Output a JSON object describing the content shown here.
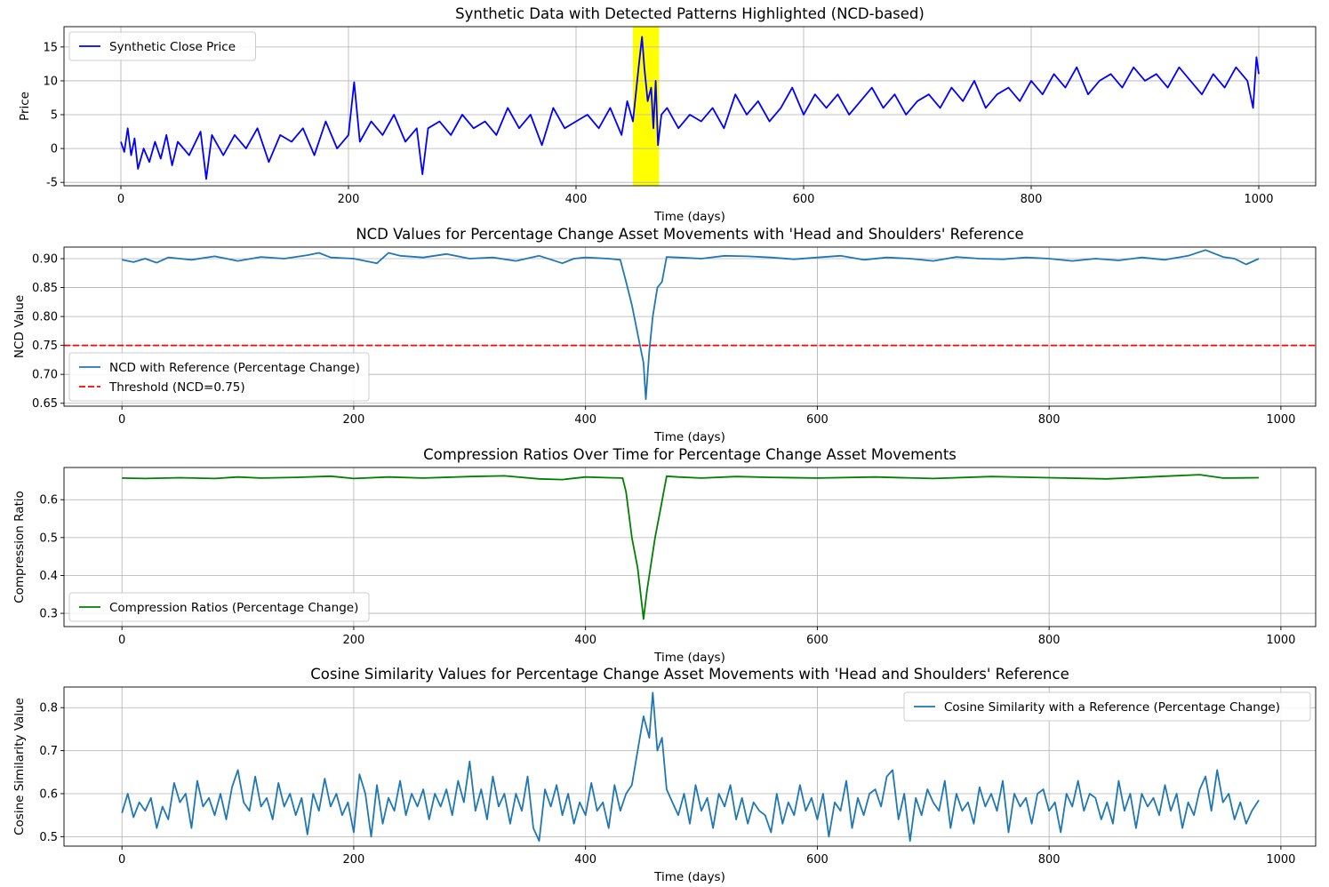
{
  "chart_data": [
    {
      "type": "line",
      "title": "Synthetic Data with Detected Patterns Highlighted (NCD-based)",
      "xlabel": "Time (days)",
      "ylabel": "Price",
      "xlim": [
        -50,
        1050
      ],
      "ylim": [
        -5.5,
        18
      ],
      "xticks": [
        0,
        200,
        400,
        600,
        800,
        1000
      ],
      "yticks": [
        -5,
        0,
        5,
        10,
        15
      ],
      "grid": true,
      "legend_position": "upper left",
      "highlight": {
        "x_start": 450,
        "x_end": 473,
        "color": "#ffff00"
      },
      "series": [
        {
          "name": "Synthetic Close Price",
          "color": "#0000ff",
          "x": [
            0,
            3,
            6,
            9,
            12,
            15,
            20,
            25,
            30,
            35,
            40,
            45,
            50,
            60,
            70,
            75,
            80,
            90,
            100,
            110,
            120,
            130,
            140,
            150,
            160,
            170,
            180,
            190,
            200,
            205,
            210,
            220,
            230,
            240,
            250,
            260,
            265,
            270,
            280,
            290,
            300,
            310,
            320,
            330,
            340,
            350,
            360,
            370,
            380,
            390,
            400,
            410,
            420,
            430,
            440,
            445,
            450,
            455,
            458,
            460,
            463,
            466,
            468,
            470,
            472,
            475,
            480,
            490,
            500,
            510,
            520,
            530,
            540,
            550,
            560,
            570,
            580,
            590,
            600,
            610,
            620,
            630,
            640,
            650,
            660,
            670,
            680,
            690,
            700,
            710,
            720,
            730,
            740,
            750,
            760,
            770,
            780,
            790,
            800,
            810,
            820,
            830,
            840,
            850,
            860,
            870,
            880,
            890,
            900,
            910,
            920,
            930,
            940,
            950,
            960,
            970,
            980,
            990,
            995,
            998,
            1000
          ],
          "y": [
            1,
            -0.5,
            3,
            -1,
            1.5,
            -3,
            0,
            -2,
            1,
            -1.5,
            2,
            -2.5,
            1,
            -1,
            2.5,
            -4.5,
            2,
            -1,
            2,
            0,
            3,
            -2,
            2,
            1,
            3,
            -1,
            4,
            0,
            2,
            9.8,
            1,
            4,
            2,
            5,
            1,
            3,
            -3.8,
            3,
            4,
            2,
            5,
            3,
            4,
            2,
            6,
            3,
            5,
            0.5,
            6,
            3,
            4,
            5,
            3,
            6,
            2,
            7,
            4,
            12,
            16.5,
            12,
            7,
            9,
            3,
            10,
            0.5,
            5,
            6,
            3,
            5,
            4,
            6,
            3,
            8,
            5,
            7,
            4,
            6,
            9,
            5,
            8,
            6,
            8,
            5,
            7,
            9,
            6,
            8,
            5,
            7,
            8,
            6,
            9,
            7,
            10,
            6,
            8,
            9,
            7,
            10,
            8,
            11,
            9,
            12,
            8,
            10,
            11,
            9,
            12,
            10,
            11,
            9,
            12,
            10,
            8,
            11,
            9,
            12,
            10,
            6,
            13.5,
            11
          ]
        }
      ]
    },
    {
      "type": "line",
      "title": "NCD Values for Percentage Change Asset Movements with 'Head and Shoulders' Reference",
      "xlabel": "Time (days)",
      "ylabel": "NCD Value",
      "xlim": [
        -50,
        1030
      ],
      "ylim": [
        0.645,
        0.92
      ],
      "xticks": [
        0,
        200,
        400,
        600,
        800,
        1000
      ],
      "yticks": [
        0.65,
        0.7,
        0.75,
        0.8,
        0.85,
        0.9
      ],
      "grid": true,
      "legend_position": "lower left",
      "series": [
        {
          "name": "NCD with Reference (Percentage Change)",
          "color": "#1f77b4",
          "x": [
            0,
            10,
            20,
            30,
            40,
            50,
            60,
            80,
            100,
            120,
            140,
            160,
            170,
            180,
            200,
            220,
            230,
            240,
            260,
            280,
            300,
            320,
            340,
            360,
            380,
            390,
            400,
            420,
            430,
            435,
            440,
            445,
            450,
            452,
            455,
            458,
            462,
            466,
            470,
            480,
            500,
            520,
            540,
            560,
            580,
            600,
            620,
            640,
            660,
            680,
            700,
            720,
            740,
            760,
            780,
            800,
            820,
            840,
            860,
            880,
            900,
            920,
            935,
            950,
            960,
            970,
            981
          ],
          "y": [
            0.898,
            0.894,
            0.9,
            0.893,
            0.902,
            0.9,
            0.898,
            0.904,
            0.896,
            0.903,
            0.9,
            0.906,
            0.91,
            0.902,
            0.9,
            0.892,
            0.91,
            0.905,
            0.902,
            0.908,
            0.9,
            0.902,
            0.896,
            0.905,
            0.892,
            0.9,
            0.902,
            0.9,
            0.898,
            0.86,
            0.82,
            0.77,
            0.72,
            0.657,
            0.74,
            0.8,
            0.85,
            0.86,
            0.903,
            0.902,
            0.9,
            0.905,
            0.904,
            0.902,
            0.899,
            0.902,
            0.905,
            0.898,
            0.902,
            0.9,
            0.896,
            0.903,
            0.9,
            0.899,
            0.902,
            0.9,
            0.896,
            0.9,
            0.897,
            0.902,
            0.898,
            0.905,
            0.915,
            0.903,
            0.9,
            0.89,
            0.9
          ]
        },
        {
          "name": "Threshold (NCD=0.75)",
          "color": "#ff0000",
          "dashed": true,
          "hline": 0.75
        }
      ]
    },
    {
      "type": "line",
      "title": "Compression Ratios Over Time for Percentage Change Asset Movements",
      "xlabel": "Time (days)",
      "ylabel": "Compression Ratio",
      "xlim": [
        -50,
        1030
      ],
      "ylim": [
        0.265,
        0.685
      ],
      "xticks": [
        0,
        200,
        400,
        600,
        800,
        1000
      ],
      "yticks": [
        0.3,
        0.4,
        0.5,
        0.6
      ],
      "grid": true,
      "legend_position": "lower left",
      "series": [
        {
          "name": "Compression Ratios (Percentage Change)",
          "color": "#008000",
          "x": [
            0,
            20,
            50,
            80,
            100,
            120,
            150,
            180,
            200,
            230,
            260,
            300,
            330,
            360,
            380,
            400,
            420,
            432,
            435,
            440,
            445,
            450,
            453,
            456,
            460,
            465,
            470,
            480,
            500,
            530,
            560,
            600,
            650,
            700,
            750,
            800,
            850,
            900,
            930,
            950,
            981
          ],
          "y": [
            0.657,
            0.656,
            0.658,
            0.656,
            0.66,
            0.657,
            0.659,
            0.662,
            0.656,
            0.66,
            0.657,
            0.661,
            0.663,
            0.655,
            0.653,
            0.66,
            0.658,
            0.657,
            0.62,
            0.5,
            0.42,
            0.285,
            0.36,
            0.42,
            0.5,
            0.58,
            0.662,
            0.66,
            0.657,
            0.661,
            0.659,
            0.657,
            0.66,
            0.656,
            0.661,
            0.658,
            0.655,
            0.662,
            0.666,
            0.657,
            0.658
          ]
        }
      ]
    },
    {
      "type": "line",
      "title": "Cosine Similarity Values for Percentage Change Asset Movements with 'Head and Shoulders' Reference",
      "xlabel": "Time (days)",
      "ylabel": "Cosine Similarity Value",
      "xlim": [
        -50,
        1030
      ],
      "ylim": [
        0.478,
        0.848
      ],
      "xticks": [
        0,
        200,
        400,
        600,
        800,
        1000
      ],
      "yticks": [
        0.5,
        0.6,
        0.7,
        0.8
      ],
      "grid": true,
      "legend_position": "upper right",
      "series": [
        {
          "name": "Cosine Similarity with a Reference (Percentage Change)",
          "color": "#1f77b4",
          "x": [
            0,
            5,
            10,
            15,
            20,
            25,
            30,
            35,
            40,
            45,
            50,
            55,
            60,
            65,
            70,
            75,
            80,
            85,
            90,
            95,
            100,
            105,
            110,
            115,
            120,
            125,
            130,
            135,
            140,
            145,
            150,
            155,
            160,
            165,
            170,
            175,
            180,
            185,
            190,
            195,
            200,
            205,
            210,
            215,
            220,
            225,
            230,
            235,
            240,
            245,
            250,
            255,
            260,
            265,
            270,
            275,
            280,
            285,
            290,
            295,
            300,
            305,
            310,
            315,
            320,
            325,
            330,
            335,
            340,
            345,
            350,
            355,
            360,
            365,
            370,
            375,
            380,
            385,
            390,
            395,
            400,
            405,
            410,
            415,
            420,
            425,
            430,
            435,
            440,
            445,
            450,
            455,
            458,
            462,
            466,
            470,
            475,
            480,
            485,
            490,
            495,
            500,
            505,
            510,
            515,
            520,
            525,
            530,
            535,
            540,
            545,
            550,
            555,
            560,
            565,
            570,
            575,
            580,
            585,
            590,
            595,
            600,
            605,
            610,
            615,
            620,
            625,
            630,
            635,
            640,
            645,
            650,
            655,
            660,
            665,
            670,
            675,
            680,
            685,
            690,
            695,
            700,
            705,
            710,
            715,
            720,
            725,
            730,
            735,
            740,
            745,
            750,
            755,
            760,
            765,
            770,
            775,
            780,
            785,
            790,
            795,
            800,
            805,
            810,
            815,
            820,
            825,
            830,
            835,
            840,
            845,
            850,
            855,
            860,
            865,
            870,
            875,
            880,
            885,
            890,
            895,
            900,
            905,
            910,
            915,
            920,
            925,
            930,
            935,
            940,
            945,
            950,
            955,
            960,
            965,
            970,
            975,
            981
          ],
          "y": [
            0.555,
            0.6,
            0.545,
            0.58,
            0.56,
            0.59,
            0.52,
            0.57,
            0.54,
            0.625,
            0.58,
            0.6,
            0.52,
            0.63,
            0.57,
            0.59,
            0.55,
            0.6,
            0.54,
            0.615,
            0.655,
            0.58,
            0.56,
            0.64,
            0.57,
            0.59,
            0.54,
            0.625,
            0.57,
            0.6,
            0.55,
            0.59,
            0.505,
            0.6,
            0.56,
            0.635,
            0.57,
            0.6,
            0.55,
            0.58,
            0.51,
            0.645,
            0.6,
            0.5,
            0.62,
            0.53,
            0.59,
            0.56,
            0.63,
            0.55,
            0.6,
            0.57,
            0.61,
            0.54,
            0.6,
            0.57,
            0.61,
            0.55,
            0.63,
            0.58,
            0.675,
            0.56,
            0.61,
            0.54,
            0.64,
            0.57,
            0.6,
            0.53,
            0.6,
            0.56,
            0.64,
            0.52,
            0.49,
            0.61,
            0.57,
            0.62,
            0.55,
            0.6,
            0.53,
            0.58,
            0.55,
            0.625,
            0.56,
            0.58,
            0.52,
            0.62,
            0.56,
            0.6,
            0.62,
            0.7,
            0.78,
            0.73,
            0.835,
            0.7,
            0.73,
            0.61,
            0.58,
            0.55,
            0.6,
            0.53,
            0.62,
            0.56,
            0.59,
            0.52,
            0.6,
            0.57,
            0.62,
            0.54,
            0.59,
            0.53,
            0.58,
            0.56,
            0.55,
            0.51,
            0.6,
            0.53,
            0.58,
            0.55,
            0.62,
            0.56,
            0.59,
            0.54,
            0.6,
            0.5,
            0.58,
            0.56,
            0.63,
            0.52,
            0.59,
            0.55,
            0.6,
            0.61,
            0.57,
            0.64,
            0.655,
            0.54,
            0.6,
            0.49,
            0.59,
            0.55,
            0.61,
            0.58,
            0.56,
            0.63,
            0.52,
            0.6,
            0.56,
            0.58,
            0.53,
            0.615,
            0.57,
            0.6,
            0.56,
            0.63,
            0.51,
            0.6,
            0.57,
            0.59,
            0.53,
            0.6,
            0.61,
            0.56,
            0.58,
            0.51,
            0.6,
            0.57,
            0.63,
            0.56,
            0.6,
            0.59,
            0.54,
            0.58,
            0.53,
            0.63,
            0.56,
            0.6,
            0.52,
            0.6,
            0.57,
            0.59,
            0.55,
            0.62,
            0.56,
            0.6,
            0.52,
            0.58,
            0.55,
            0.61,
            0.64,
            0.56,
            0.655,
            0.58,
            0.6,
            0.54,
            0.58,
            0.53,
            0.56,
            0.585
          ]
        }
      ]
    }
  ]
}
